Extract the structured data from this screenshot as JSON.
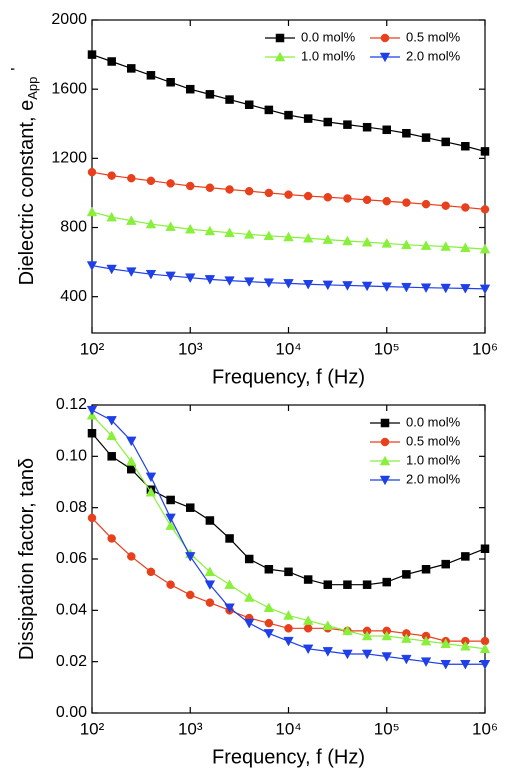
{
  "chart_data": [
    {
      "type": "line",
      "xlabel": "Frequency, f (Hz)",
      "ylabel": "Dielectric constant, e",
      "ylabel_sub": "App",
      "ylabel_sup": "'",
      "xscale": "log",
      "xlim": [
        100,
        1000000
      ],
      "xticks": [
        {
          "value": 100,
          "label": "10²"
        },
        {
          "value": 1000,
          "label": "10³"
        },
        {
          "value": 10000,
          "label": "10⁴"
        },
        {
          "value": 100000,
          "label": "10⁵"
        },
        {
          "value": 1000000,
          "label": "10⁶"
        }
      ],
      "ylim": [
        190,
        2000
      ],
      "yticks": [
        400,
        800,
        1200,
        1600,
        2000
      ],
      "legend": "upper right",
      "legend_ncol": 2,
      "x": [
        100,
        158.5,
        251.2,
        398.1,
        631,
        1000,
        1585,
        2512,
        3981,
        6310,
        10000,
        15849,
        25119,
        39811,
        63096,
        100000,
        158489,
        251189,
        398107,
        630957,
        1000000
      ],
      "series": [
        {
          "name": "0.0 mol%",
          "color": "#000000",
          "marker": "square",
          "values": [
            1800,
            1760,
            1720,
            1680,
            1640,
            1600,
            1570,
            1540,
            1510,
            1480,
            1450,
            1430,
            1410,
            1395,
            1380,
            1365,
            1345,
            1320,
            1295,
            1270,
            1240
          ]
        },
        {
          "name": "0.5 mol%",
          "color": "#e8401c",
          "marker": "circle",
          "values": [
            1120,
            1100,
            1085,
            1070,
            1055,
            1040,
            1030,
            1020,
            1010,
            1000,
            990,
            982,
            975,
            968,
            960,
            952,
            944,
            935,
            926,
            916,
            905
          ]
        },
        {
          "name": "1.0 mol%",
          "color": "#88f03a",
          "marker": "triangle-up",
          "values": [
            890,
            860,
            840,
            820,
            805,
            790,
            780,
            770,
            760,
            752,
            745,
            738,
            730,
            722,
            715,
            708,
            700,
            695,
            690,
            683,
            675
          ]
        },
        {
          "name": "2.0 mol%",
          "color": "#1f3fe8",
          "marker": "triangle-down",
          "values": [
            580,
            560,
            545,
            530,
            520,
            510,
            500,
            493,
            487,
            481,
            477,
            472,
            468,
            465,
            462,
            458,
            455,
            452,
            450,
            448,
            445
          ]
        }
      ]
    },
    {
      "type": "line",
      "xlabel": "Frequency, f (Hz)",
      "ylabel": "Dissipation factor, tanδ",
      "xscale": "log",
      "xlim": [
        100,
        1000000
      ],
      "xticks": [
        {
          "value": 100,
          "label": "10²"
        },
        {
          "value": 1000,
          "label": "10³"
        },
        {
          "value": 10000,
          "label": "10⁴"
        },
        {
          "value": 100000,
          "label": "10⁵"
        },
        {
          "value": 1000000,
          "label": "10⁶"
        }
      ],
      "ylim": [
        0,
        0.12
      ],
      "yticks": [
        {
          "value": 0,
          "label": "0.00"
        },
        {
          "value": 0.02,
          "label": "0.02"
        },
        {
          "value": 0.04,
          "label": "0.04"
        },
        {
          "value": 0.06,
          "label": "0.06"
        },
        {
          "value": 0.08,
          "label": "0.08"
        },
        {
          "value": 0.1,
          "label": "0.10"
        },
        {
          "value": 0.12,
          "label": "0.12"
        }
      ],
      "legend": "upper right",
      "legend_ncol": 1,
      "x": [
        100,
        158.5,
        251.2,
        398.1,
        631,
        1000,
        1585,
        2512,
        3981,
        6310,
        10000,
        15849,
        25119,
        39811,
        63096,
        100000,
        158489,
        251189,
        398107,
        630957,
        1000000
      ],
      "series": [
        {
          "name": "0.0 mol%",
          "color": "#000000",
          "marker": "square",
          "values": [
            0.109,
            0.1,
            0.095,
            0.087,
            0.083,
            0.08,
            0.075,
            0.068,
            0.06,
            0.056,
            0.055,
            0.052,
            0.05,
            0.05,
            0.05,
            0.051,
            0.054,
            0.056,
            0.058,
            0.061,
            0.064
          ]
        },
        {
          "name": "0.5 mol%",
          "color": "#e8401c",
          "marker": "circle",
          "values": [
            0.076,
            0.068,
            0.061,
            0.055,
            0.05,
            0.046,
            0.043,
            0.04,
            0.037,
            0.035,
            0.033,
            0.033,
            0.033,
            0.032,
            0.032,
            0.032,
            0.031,
            0.03,
            0.028,
            0.028,
            0.028
          ]
        },
        {
          "name": "1.0 mol%",
          "color": "#88f03a",
          "marker": "triangle-up",
          "values": [
            0.116,
            0.108,
            0.098,
            0.086,
            0.073,
            0.062,
            0.055,
            0.05,
            0.045,
            0.041,
            0.038,
            0.036,
            0.034,
            0.032,
            0.03,
            0.03,
            0.029,
            0.028,
            0.027,
            0.026,
            0.025
          ]
        },
        {
          "name": "2.0 mol%",
          "color": "#1f3fe8",
          "marker": "triangle-down",
          "values": [
            0.118,
            0.114,
            0.106,
            0.092,
            0.076,
            0.061,
            0.05,
            0.041,
            0.035,
            0.031,
            0.028,
            0.025,
            0.024,
            0.023,
            0.023,
            0.022,
            0.021,
            0.02,
            0.019,
            0.019,
            0.019
          ]
        }
      ]
    }
  ]
}
